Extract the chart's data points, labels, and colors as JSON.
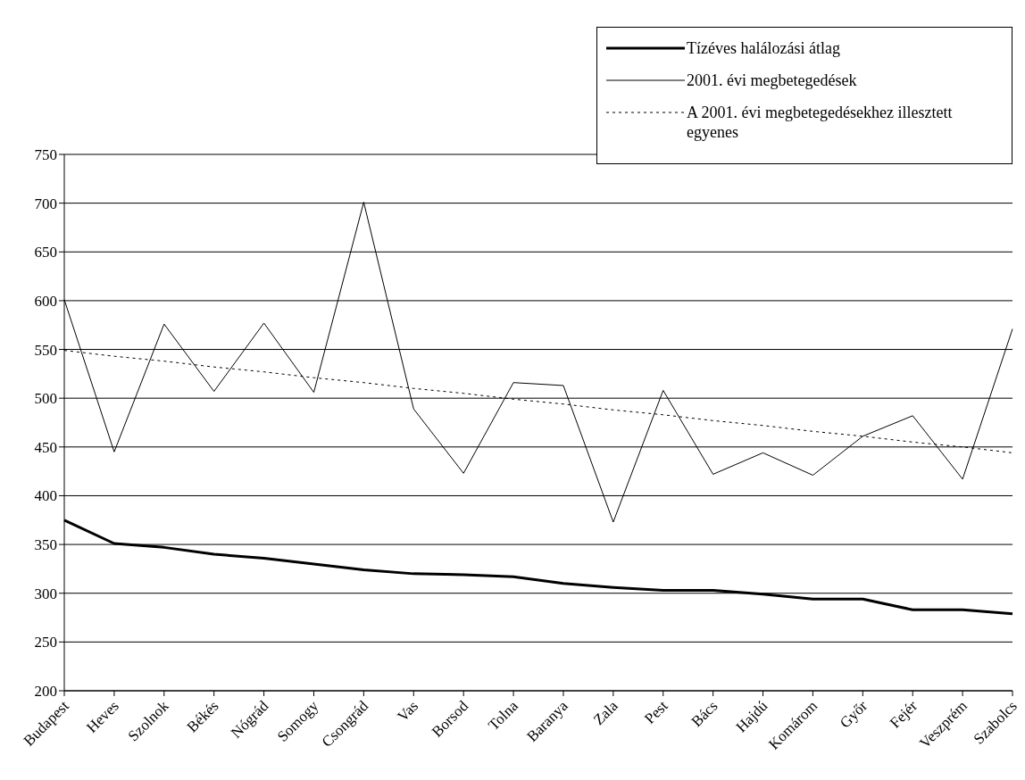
{
  "chart_data": {
    "type": "line",
    "categories": [
      "Budapest",
      "Heves",
      "Szolnok",
      "Békés",
      "Nógrád",
      "Somogy",
      "Csongrád",
      "Vas",
      "Borsod",
      "Tolna",
      "Baranya",
      "Zala",
      "Pest",
      "Bács",
      "Hajdú",
      "Komárom",
      "Győr",
      "Fejér",
      "Veszprém",
      "Szabolcs"
    ],
    "series": [
      {
        "name": "Tízéves halálozási átlag",
        "color": "#000000",
        "line_style": "solid",
        "values": [
          375,
          351,
          347,
          340,
          336,
          330,
          324,
          320,
          319,
          317,
          310,
          306,
          303,
          303,
          299,
          294,
          294,
          283,
          283,
          279
        ]
      },
      {
        "name": "2001. évi megbetegedések",
        "color": "#000000",
        "line_style": "solid",
        "values": [
          601,
          445,
          576,
          507,
          577,
          506,
          701,
          489,
          423,
          516,
          513,
          373,
          508,
          422,
          444,
          421,
          461,
          482,
          417,
          571
        ]
      },
      {
        "name": "A 2001. évi megbetegedésekhez illesztett egyenes",
        "color": "#000000",
        "line_style": "dotted",
        "values": [
          549,
          543,
          538,
          532,
          527,
          521,
          516,
          510,
          505,
          499,
          494,
          488,
          483,
          477,
          472,
          466,
          461,
          455,
          450,
          444
        ]
      }
    ],
    "ylim": [
      200,
      750
    ],
    "yticks": [
      200,
      250,
      300,
      350,
      400,
      450,
      500,
      550,
      600,
      650,
      700,
      750
    ],
    "grid": "y",
    "legend": "top right",
    "marker": "none"
  }
}
